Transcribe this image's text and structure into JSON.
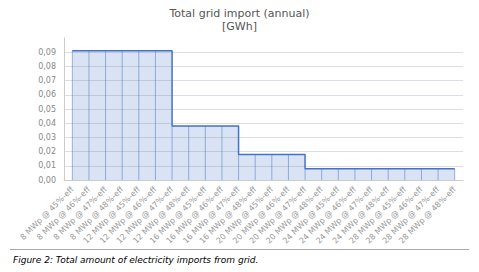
{
  "chart_data": {
    "type": "step",
    "title": "Total grid import (annual)\n[GWh]",
    "caption": "Figure 2: Total amount of electricity imports from grid.",
    "categories": [
      "8 MWp @ 45%-eff",
      "8 MWp @ 46%-eff",
      "8 MWp @ 47%-eff",
      "8 MWp @ 48%-eff",
      "12 MWp @ 45%-eff",
      "12 MWp @ 46%-eff",
      "12 MWp @ 47%-eff",
      "12 MWp @ 48%-eff",
      "16 MWp @ 45%-eff",
      "16 MWp @ 46%-eff",
      "16 MWp @ 47%-eff",
      "16 MWp @ 48%-eff",
      "20 MWp @ 45%-eff",
      "20 MWp @ 46%-eff",
      "20 MWp @ 47%-eff",
      "20 MWp @ 48%-eff",
      "24 MWp @ 45%-eff",
      "24 MWp @ 46%-eff",
      "24 MWp @ 47%-eff",
      "24 MWp @ 48%-eff",
      "28 MWp @ 45%-eff",
      "28 MWp @ 46%-eff",
      "28 MWp @ 47%-eff",
      "28 MWp @ 48%-eff"
    ],
    "values": [
      0.091,
      0.091,
      0.091,
      0.091,
      0.091,
      0.091,
      0.038,
      0.038,
      0.038,
      0.038,
      0.018,
      0.018,
      0.018,
      0.018,
      0.008,
      0.008,
      0.008,
      0.008,
      0.008,
      0.008,
      0.008,
      0.008,
      0.008,
      0.008
    ],
    "color": "#4472C4",
    "ylim": [
      0,
      0.1
    ],
    "yticks": [
      {
        "value": 0,
        "label": "0,00"
      },
      {
        "value": 0.01,
        "label": "0,01"
      },
      {
        "value": 0.02,
        "label": "0,02"
      },
      {
        "value": 0.03,
        "label": "0,03"
      },
      {
        "value": 0.04,
        "label": "0,04"
      },
      {
        "value": 0.05,
        "label": "0,05"
      },
      {
        "value": 0.06,
        "label": "0,06"
      },
      {
        "value": 0.07,
        "label": "0,07"
      },
      {
        "value": 0.08,
        "label": "0,08"
      },
      {
        "value": 0.09,
        "label": "0,09"
      }
    ],
    "grid": true
  }
}
